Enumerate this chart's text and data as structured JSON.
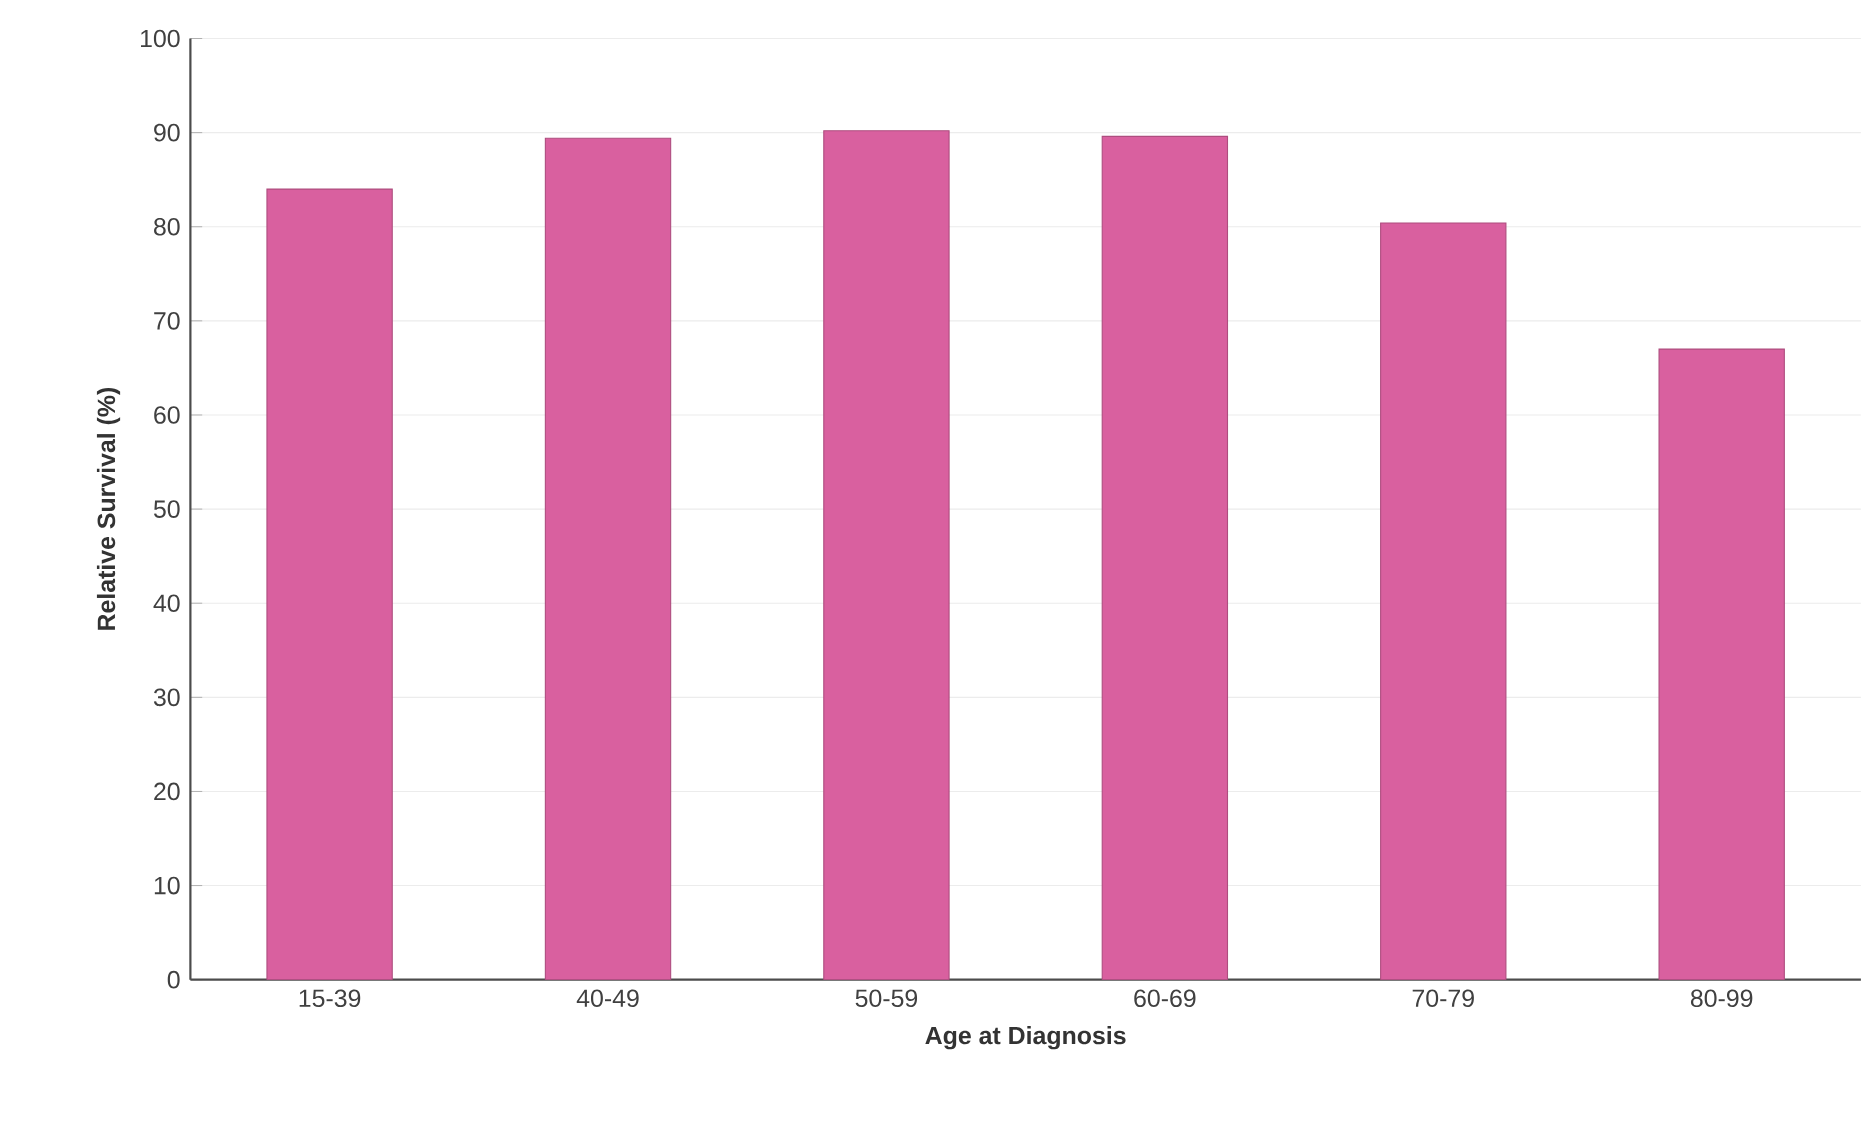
{
  "chart_data": {
    "type": "bar",
    "xlabel": "Age at Diagnosis",
    "ylabel": "Relative Survival (%)",
    "categories": [
      "15-39",
      "40-49",
      "50-59",
      "60-69",
      "70-79",
      "80-99"
    ],
    "values": [
      84,
      89.4,
      90.2,
      89.6,
      80.4,
      67
    ],
    "color": "#d9609f",
    "ylim": [
      0,
      100
    ],
    "yticks": [
      0,
      10,
      20,
      30,
      40,
      50,
      60,
      70,
      80,
      90,
      100
    ],
    "grid": "y"
  }
}
